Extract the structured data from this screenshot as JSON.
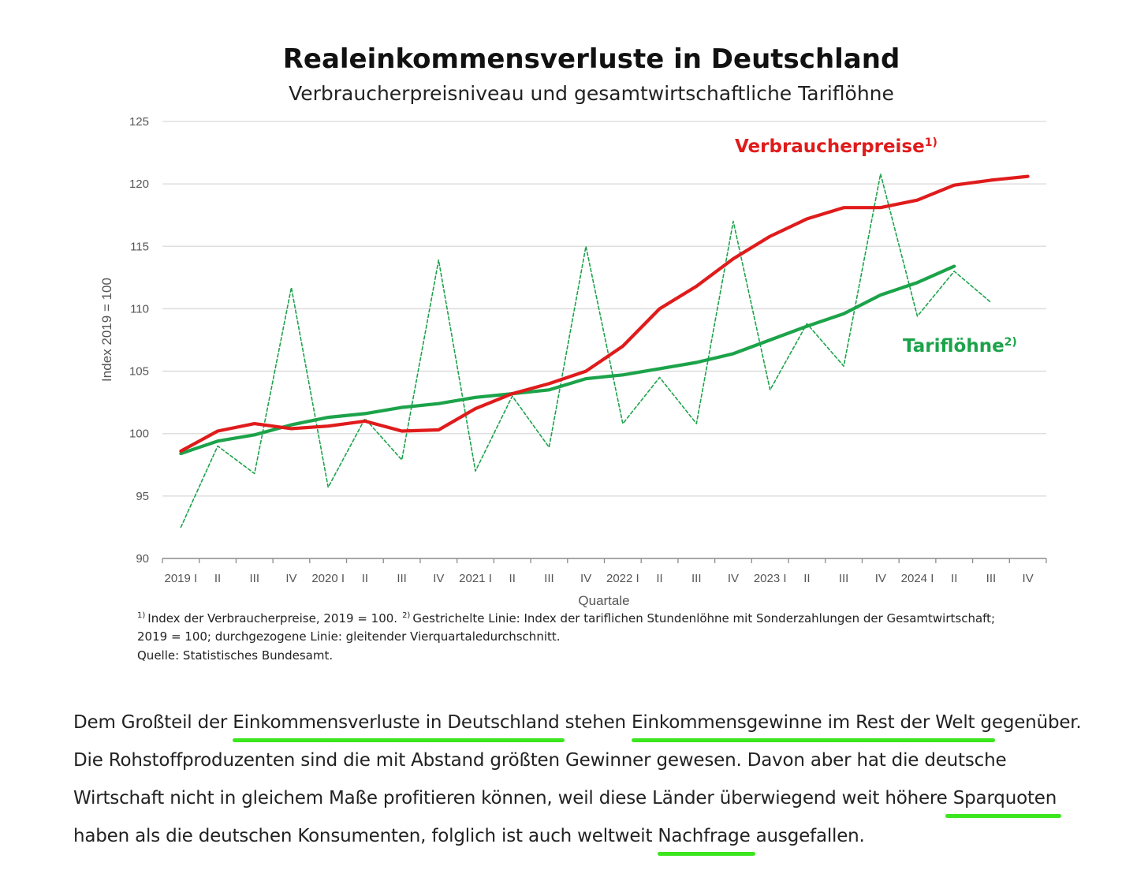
{
  "chart_data": {
    "type": "line",
    "title": "Realeinkommensverluste in Deutschland",
    "subtitle": "Verbraucherpreisniveau und gesamtwirtschaftliche Tariflöhne",
    "ylabel": "Index 2019 = 100",
    "xlabel": "Quartale",
    "ylim": [
      90,
      125
    ],
    "yticks": [
      90,
      95,
      100,
      105,
      110,
      115,
      120,
      125
    ],
    "grid": true,
    "categories": [
      "2019 I",
      "II",
      "III",
      "IV",
      "2020 I",
      "II",
      "III",
      "IV",
      "2021 I",
      "II",
      "III",
      "IV",
      "2022 I",
      "II",
      "III",
      "IV",
      "2023 I",
      "II",
      "III",
      "IV",
      "2024 I",
      "II",
      "III",
      "IV"
    ],
    "series": [
      {
        "name": "Verbraucherpreise",
        "label_sup": "1)",
        "color": "#e01b1b",
        "style": "solid",
        "values": [
          98.6,
          100.2,
          100.8,
          100.4,
          100.6,
          101.0,
          100.2,
          100.3,
          102.0,
          103.2,
          104.0,
          105.0,
          107.0,
          110.0,
          111.8,
          114.0,
          115.8,
          117.2,
          118.1,
          118.1,
          118.7,
          119.9,
          120.3,
          120.6
        ]
      },
      {
        "name": "Tariflöhne",
        "label_sup": "2)",
        "color": "#1ca34a",
        "style": "solid",
        "values": [
          98.4,
          99.4,
          99.9,
          100.7,
          101.3,
          101.6,
          102.1,
          102.4,
          102.9,
          103.2,
          103.5,
          104.4,
          104.7,
          105.2,
          105.7,
          106.4,
          107.5,
          108.6,
          109.6,
          111.1,
          112.1,
          113.4,
          null,
          null
        ]
      },
      {
        "color": "#1ca34a",
        "style": "dashed",
        "values": [
          92.5,
          99.0,
          96.8,
          111.7,
          95.7,
          101.2,
          97.9,
          113.9,
          97.0,
          103.0,
          98.9,
          115.0,
          100.8,
          104.5,
          100.8,
          117.0,
          103.5,
          108.8,
          105.4,
          120.8,
          109.4,
          113.0,
          110.5,
          null
        ]
      }
    ],
    "footnotes": [
      "Index der Verbraucherpreise, 2019 = 100.",
      "Gestrichelte Linie: Index der tariflichen Stundenlöhne mit Sonderzahlungen der Gesamtwirtschaft;",
      "2019 = 100; durchgezogene Linie: gleitender Vierquartaledurchschnitt.",
      "Quelle: Statistisches Bundesamt."
    ]
  },
  "text": {
    "p1": "Dem Großteil der ",
    "h1": "Einkommensverluste in Deutschland",
    "p2": " stehen ",
    "h2": "Einkommensgewinne im Rest der Welt",
    "p3": " gegenüber. Die Rohstoffproduzenten sind die mit Abstand größten Gewinner gewesen. Davon aber hat die deutsche Wirtschaft nicht in gleichem Maße profitieren können, weil diese Länder überwiegend weit höhere ",
    "h3": "Sparquoten",
    "p4": " haben als die deutschen Konsumenten, folglich ist auch weltweit ",
    "h4": "Nachfrage",
    "p5": " ausgefallen."
  },
  "colors": {
    "highlight": "#3be61e",
    "grid": "#d9d9d9"
  }
}
